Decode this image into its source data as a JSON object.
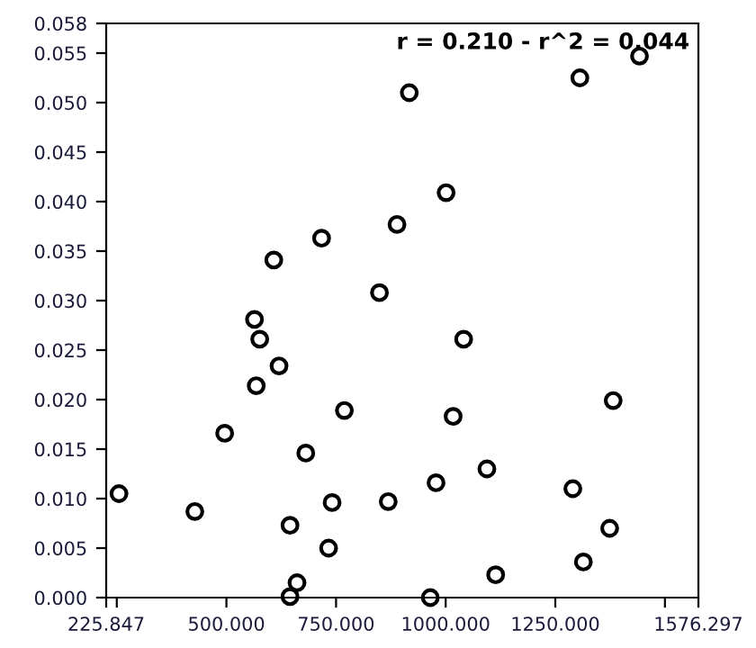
{
  "chart_data": {
    "type": "scatter",
    "marker": "circle",
    "grid": false,
    "legend": false,
    "annotations": [
      "r = 0.210 - r^2 = 0.044"
    ],
    "x": [
      255,
      428,
      496,
      564,
      576,
      568,
      620,
      608,
      717,
      769,
      681,
      741,
      645,
      733,
      661,
      645,
      917,
      1306,
      1442,
      1001,
      889,
      849,
      1041,
      1382,
      1017,
      1094,
      978,
      869,
      1290,
      1374,
      1314,
      1114,
      965
    ],
    "series": [
      {
        "color": "#000000",
        "values": [
          0.0105,
          0.0087,
          0.0166,
          0.0281,
          0.0261,
          0.0214,
          0.0234,
          0.0341,
          0.0363,
          0.0189,
          0.0146,
          0.0096,
          0.0073,
          0.005,
          0.0015,
          0.0001,
          0.051,
          0.0525,
          0.0547,
          0.0409,
          0.0377,
          0.0308,
          0.0261,
          0.0199,
          0.0183,
          0.013,
          0.0116,
          0.0097,
          0.011,
          0.007,
          0.0036,
          0.0023,
          0.0
        ]
      }
    ],
    "xlim": [
      225.847,
      1576.297
    ],
    "xticks": [
      {
        "value": 225.847,
        "label": "225.847"
      },
      {
        "value": 250,
        "label": null
      },
      {
        "value": 500,
        "label": "500.000"
      },
      {
        "value": 750,
        "label": "750.000"
      },
      {
        "value": 1000,
        "label": "1000.000"
      },
      {
        "value": 1250,
        "label": "1250.000"
      },
      {
        "value": 1500,
        "label": null
      },
      {
        "value": 1576.297,
        "label": "1576.297"
      }
    ],
    "ylim": [
      0,
      0.058
    ],
    "yticks": [
      {
        "value": 0,
        "label": "0.000"
      },
      {
        "value": 0.005,
        "label": "0.005"
      },
      {
        "value": 0.01,
        "label": "0.010"
      },
      {
        "value": 0.015,
        "label": "0.015"
      },
      {
        "value": 0.02,
        "label": "0.020"
      },
      {
        "value": 0.025,
        "label": "0.025"
      },
      {
        "value": 0.03,
        "label": "0.030"
      },
      {
        "value": 0.035,
        "label": "0.035"
      },
      {
        "value": 0.04,
        "label": "0.040"
      },
      {
        "value": 0.045,
        "label": "0.045"
      },
      {
        "value": 0.05,
        "label": "0.050"
      },
      {
        "value": 0.055,
        "label": "0.055"
      },
      {
        "value": 0.058,
        "label": "0.058"
      }
    ]
  }
}
